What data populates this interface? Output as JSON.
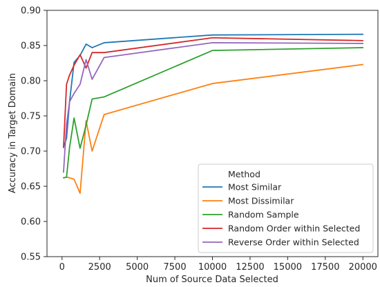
{
  "chart_data": {
    "type": "line",
    "xlabel": "Num of Source Data Selected",
    "ylabel": "Accuracy in Target Domain",
    "xlim": [
      -1000,
      21000
    ],
    "ylim": [
      0.55,
      0.9
    ],
    "x_ticks": [
      0,
      2500,
      5000,
      7500,
      10000,
      12500,
      15000,
      17500,
      20000
    ],
    "x_tick_labels": [
      "0",
      "2500",
      "5000",
      "7500",
      "10000",
      "12500",
      "15000",
      "17500",
      "20000"
    ],
    "y_ticks": [
      0.55,
      0.6,
      0.65,
      0.7,
      0.75,
      0.8,
      0.85,
      0.9
    ],
    "y_tick_labels": [
      "0.55",
      "0.60",
      "0.65",
      "0.70",
      "0.75",
      "0.80",
      "0.85",
      "0.90"
    ],
    "grid": false,
    "legend": {
      "title": "Method",
      "placement": "lower-right"
    },
    "series": [
      {
        "name": "Most Similar",
        "color": "#1f77b4",
        "x": [
          100,
          300,
          500,
          800,
          1200,
          1600,
          2000,
          2800,
          10000,
          20000
        ],
        "y": [
          0.706,
          0.718,
          0.77,
          0.826,
          0.836,
          0.852,
          0.847,
          0.854,
          0.865,
          0.866
        ]
      },
      {
        "name": "Most Dissimilar",
        "color": "#ff7f0e",
        "x": [
          100,
          300,
          500,
          800,
          1200,
          1600,
          2000,
          2800,
          10000,
          20000
        ],
        "y": [
          0.662,
          0.663,
          0.662,
          0.66,
          0.64,
          0.743,
          0.7,
          0.752,
          0.796,
          0.823
        ]
      },
      {
        "name": "Random Sample",
        "color": "#2ca02c",
        "x": [
          100,
          300,
          500,
          800,
          1200,
          1600,
          2000,
          2800,
          10000,
          20000
        ],
        "y": [
          0.662,
          0.663,
          0.705,
          0.747,
          0.704,
          0.737,
          0.774,
          0.777,
          0.843,
          0.847
        ]
      },
      {
        "name": "Random Order within Selected",
        "color": "#d62728",
        "x": [
          100,
          300,
          500,
          800,
          1200,
          1600,
          2000,
          2800,
          10000,
          20000
        ],
        "y": [
          0.705,
          0.795,
          0.808,
          0.822,
          0.837,
          0.818,
          0.84,
          0.84,
          0.861,
          0.857
        ]
      },
      {
        "name": "Reverse Order within Selected",
        "color": "#9467bd",
        "x": [
          100,
          300,
          500,
          800,
          1200,
          1600,
          2000,
          2800,
          10000,
          20000
        ],
        "y": [
          0.67,
          0.738,
          0.77,
          0.782,
          0.795,
          0.83,
          0.802,
          0.833,
          0.854,
          0.853
        ]
      }
    ]
  }
}
